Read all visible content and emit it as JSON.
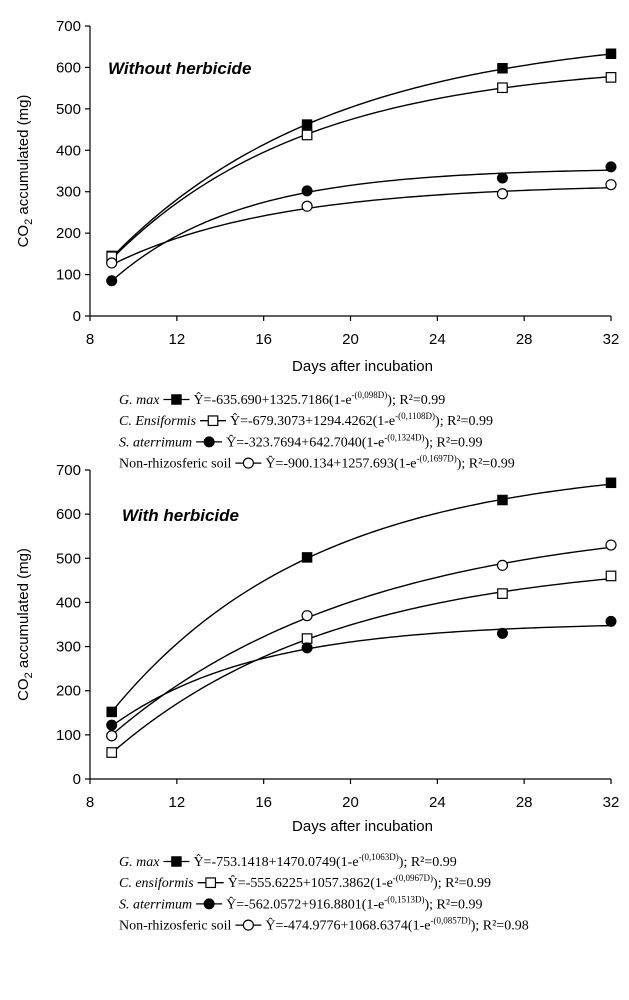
{
  "chart_data": [
    {
      "type": "line",
      "title": "Without herbicide",
      "xlabel": "Days after incubation",
      "ylabel": "CO2 accumulated (mg)",
      "ylabel_parts": {
        "pre": "CO",
        "sub": "2",
        "post": " accumulated (mg)"
      },
      "xlim": [
        8,
        32
      ],
      "ylim": [
        0,
        700
      ],
      "x_ticks": [
        8,
        12,
        16,
        20,
        24,
        28,
        32
      ],
      "y_ticks": [
        0,
        100,
        200,
        300,
        400,
        500,
        600,
        700
      ],
      "grid": false,
      "x": [
        9,
        18,
        27,
        32
      ],
      "series": [
        {
          "name": "G. max",
          "marker": "filled-square",
          "points": [
            145,
            462,
            598,
            633
          ],
          "curve": {
            "a": -635.69,
            "b": 1325.7186,
            "c": 0.098
          },
          "equation": {
            "species": "G. max",
            "pre": "Ŷ=-635.690+1325.7186(1-e",
            "exp": "-(0,098D)",
            "post": "); R²=0.99"
          }
        },
        {
          "name": "C. Ensiformis",
          "marker": "open-square",
          "points": [
            143,
            437,
            551,
            576
          ],
          "curve": {
            "a": -679.3073,
            "b": 1294.4262,
            "c": 0.1108
          },
          "equation": {
            "species": "C. Ensiformis",
            "pre": "Ŷ=-679.3073+1294.4262(1-e",
            "exp": "-(0,1108D)",
            "post": "); R²=0.99"
          }
        },
        {
          "name": "S. aterrimum",
          "marker": "filled-circle",
          "points": [
            85,
            302,
            333,
            360
          ],
          "curve": {
            "a": -323.7694,
            "b": 642.704,
            "c": 0.1324
          },
          "equation": {
            "species": "S. aterrimum",
            "pre": "Ŷ=-323.7694+642.7040(1-e",
            "exp": "-(0,1324D)",
            "post": "); R²=0.99"
          }
        },
        {
          "name": "Non-rhizosferic soil",
          "marker": "open-circle",
          "points": [
            128,
            265,
            295,
            317
          ],
          "curve": {
            "a": -900.134,
            "b": 1257.693,
            "c": 0.1697
          },
          "equation": {
            "species": "Non-rhizosferic soil",
            "pre": "Ŷ=-900.134+1257.693(1-e",
            "exp": "-(0,1697D)",
            "post": "); R²=0.99"
          }
        }
      ]
    },
    {
      "type": "line",
      "title": "With herbicide",
      "xlabel": "Days after incubation",
      "ylabel": "CO2 accumulated (mg)",
      "ylabel_parts": {
        "pre": "CO",
        "sub": "2",
        "post": " accumulated (mg)"
      },
      "xlim": [
        8,
        32
      ],
      "ylim": [
        0,
        700
      ],
      "x_ticks": [
        8,
        12,
        16,
        20,
        24,
        28,
        32
      ],
      "y_ticks": [
        0,
        100,
        200,
        300,
        400,
        500,
        600,
        700
      ],
      "grid": false,
      "x": [
        9,
        18,
        27,
        32
      ],
      "series": [
        {
          "name": "G. max",
          "marker": "filled-square",
          "points": [
            152,
            502,
            632,
            671
          ],
          "curve": {
            "a": -753.1418,
            "b": 1470.0749,
            "c": 0.1063
          },
          "equation": {
            "species": "G. max",
            "pre": "Ŷ=-753.1418+1470.0749(1-e",
            "exp": "-(0,1063D)",
            "post": "); R²=0.99"
          }
        },
        {
          "name": "C. ensiformis",
          "marker": "open-square",
          "points": [
            60,
            318,
            420,
            460
          ],
          "curve": {
            "a": -555.6225,
            "b": 1057.3862,
            "c": 0.0967
          },
          "equation": {
            "species": "C. ensiformis",
            "pre": "Ŷ=-555.6225+1057.3862(1-e",
            "exp": "-(0,0967D)",
            "post": "); R²=0.99"
          }
        },
        {
          "name": "S. aterrimum",
          "marker": "filled-circle",
          "points": [
            122,
            297,
            330,
            357
          ],
          "curve": {
            "a": -562.0572,
            "b": 916.8801,
            "c": 0.1513
          },
          "equation": {
            "species": "S. aterrimum",
            "pre": "Ŷ=-562.0572+916.8801(1-e",
            "exp": "-(0,1513D)",
            "post": "); R²=0.99"
          }
        },
        {
          "name": "Non-rhizosferic soil",
          "marker": "open-circle",
          "points": [
            98,
            370,
            484,
            530
          ],
          "curve": {
            "a": -474.9776,
            "b": 1068.6374,
            "c": 0.0857
          },
          "equation": {
            "species": "Non-rhizosferic soil",
            "pre": "Ŷ=-474.9776+1068.6374(1-e",
            "exp": "-(0,0857D)",
            "post": "); R²=0.98"
          }
        }
      ]
    }
  ]
}
